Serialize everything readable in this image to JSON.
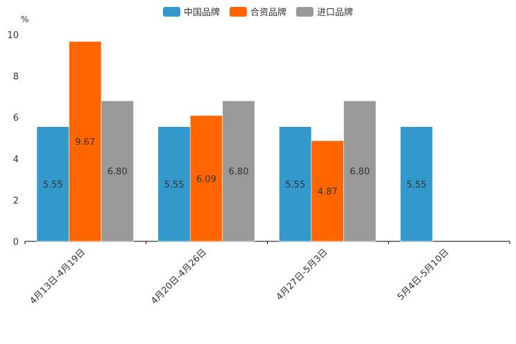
{
  "chart_data": {
    "type": "bar",
    "title": "",
    "ylabel": "%",
    "xlabel": "",
    "ylim": [
      0,
      10
    ],
    "yticks": [
      0,
      2,
      4,
      6,
      8,
      10
    ],
    "categories": [
      "4月13日-4月19日",
      "4月20日-4月26日",
      "4月27日-5月3日",
      "5月4日-5月10日"
    ],
    "series": [
      {
        "name": "中国品牌",
        "color": "#3399CC",
        "values": [
          5.55,
          5.55,
          5.55,
          5.55
        ],
        "labels": [
          "5.55",
          "5.55",
          "5.55",
          "5.55"
        ]
      },
      {
        "name": "合资品牌",
        "color": "#FF6600",
        "values": [
          9.67,
          6.09,
          4.87,
          null
        ],
        "labels": [
          "9.67",
          "6.09",
          "4.87",
          ""
        ]
      },
      {
        "name": "进口品牌",
        "color": "#999999",
        "values": [
          6.8,
          6.8,
          6.8,
          null
        ],
        "labels": [
          "6.80",
          "6.80",
          "6.80",
          ""
        ]
      }
    ],
    "legend_position": "top-center"
  }
}
